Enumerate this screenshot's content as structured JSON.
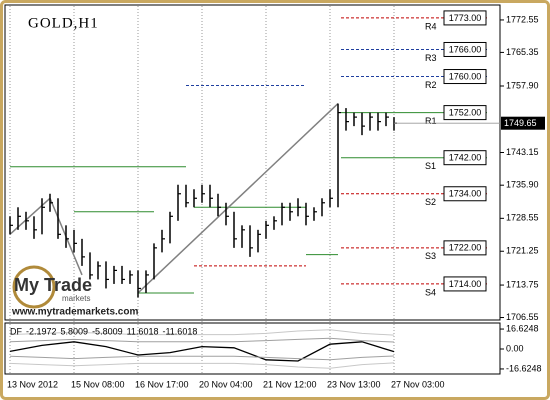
{
  "chart_data": {
    "type": "ohlc",
    "title": "GOLD,H1",
    "categories": [
      "13 Nov 2012",
      null,
      null,
      null,
      null,
      null,
      null,
      null,
      "15 Nov 08:00",
      null,
      null,
      null,
      null,
      null,
      null,
      null,
      "16 Nov 17:00",
      null,
      null,
      null,
      null,
      null,
      null,
      null,
      "20 Nov 04:00",
      null,
      null,
      null,
      null,
      null,
      null,
      null,
      "21 Nov 12:00",
      null,
      null,
      null,
      null,
      null,
      null,
      null,
      "23 Nov 13:00",
      null,
      null,
      null,
      null,
      null,
      null,
      null,
      "27 Nov 03:00"
    ],
    "high": [
      1729,
      1731,
      1730,
      1729,
      1733,
      1734,
      1733,
      1727,
      1726,
      1724,
      1721,
      1719,
      1719,
      1718,
      1718,
      1717,
      1717,
      1717,
      1723,
      1726,
      1730,
      1736,
      1736,
      1735,
      1736,
      1736,
      1734,
      1732,
      1730,
      1727,
      1727,
      1726,
      1728,
      1729,
      1732,
      1732,
      1733,
      1732,
      1731,
      1733,
      1735,
      1754,
      1753,
      1752,
      1752,
      1752,
      1752,
      1752,
      1751
    ],
    "low": [
      1725,
      1726,
      1726,
      1724,
      1725,
      1730,
      1724,
      1722,
      1721,
      1718,
      1715,
      1715,
      1713,
      1714,
      1714,
      1714,
      1711,
      1712,
      1715,
      1721,
      1723,
      1728,
      1731,
      1731,
      1732,
      1731,
      1729,
      1727,
      1722,
      1722,
      1720,
      1721,
      1724,
      1726,
      1727,
      1728,
      1729,
      1727,
      1728,
      1729,
      1731,
      1731,
      1748,
      1749,
      1747,
      1748,
      1748,
      1749,
      1748
    ],
    "close": [
      1727,
      1729,
      1728,
      1726,
      1731,
      1732,
      1725,
      1724,
      1723,
      1720,
      1716,
      1718,
      1715,
      1717,
      1715,
      1716,
      1713,
      1716,
      1722,
      1724,
      1729,
      1734,
      1732,
      1733,
      1734,
      1733,
      1731,
      1729,
      1724,
      1726,
      1722,
      1725,
      1727,
      1728,
      1731,
      1730,
      1731,
      1729,
      1730,
      1732,
      1733,
      1752,
      1750,
      1751,
      1749,
      1751,
      1750,
      1751,
      1749.65
    ],
    "bar_color": "#000000",
    "ylim": [
      1706,
      1775.2
    ],
    "yticks": [
      1772.55,
      1765.35,
      {
        "value": 1757.9,
        "label": "1757.90"
      },
      1743.15,
      {
        "value": 1735.9,
        "label": "1735.90"
      },
      1728.55,
      1721.25,
      1713.75,
      1706.55
    ],
    "grid": true,
    "last_price": 1749.65,
    "levels": {
      "names": [
        "R4",
        "R3",
        "R2",
        "R1",
        "S1",
        "S2",
        "S3",
        "S4"
      ],
      "values": [
        1773,
        1766,
        1760,
        1752,
        1742,
        1734,
        1722,
        1714
      ],
      "value_labels": [
        "1773.00",
        "1766.00",
        "1760.00",
        "1752.00",
        "1742.00",
        "1734.00",
        "1722.00",
        "1714.00"
      ],
      "colors": [
        "#c00000",
        "#1f3f9f",
        "#1f3f9f",
        "#2e8b2e",
        "#2e8b2e",
        "#c00000",
        "#c00000",
        "#c00000"
      ],
      "dashed": [
        true,
        true,
        true,
        false,
        false,
        true,
        true,
        true
      ],
      "start": 41
    },
    "past_levels": [
      {
        "value": 1740,
        "from": 0,
        "to": 22,
        "color": "#2e8b2e",
        "dashed": false
      },
      {
        "value": 1758,
        "from": 22,
        "to": 37,
        "color": "#1f3f9f",
        "dashed": true
      },
      {
        "value": 1730,
        "from": 8,
        "to": 18,
        "color": "#2e8b2e",
        "dashed": false
      },
      {
        "value": 1712,
        "from": 16,
        "to": 23,
        "color": "#2e8b2e",
        "dashed": false
      },
      {
        "value": 1718,
        "from": 23,
        "to": 37,
        "color": "#c00000",
        "dashed": true
      },
      {
        "value": 1720.5,
        "from": 37,
        "to": 41,
        "color": "#2e8b2e",
        "dashed": false
      },
      {
        "value": 1731,
        "from": 23,
        "to": 37,
        "color": "#2e8b2e",
        "dashed": false
      }
    ],
    "trendline_color": "#808080",
    "trendlines": [
      {
        "from": [
          0,
          1725
        ],
        "to": [
          5,
          1733
        ]
      },
      {
        "from": [
          5,
          1733
        ],
        "to": [
          9,
          1716
        ]
      },
      {
        "from": [
          16,
          1712
        ],
        "to": [
          41,
          1754
        ]
      }
    ],
    "watermark": {
      "brand": "My Trade",
      "sub": "markets",
      "url": "www.mytrademarkets.com"
    },
    "indicator": {
      "name": "DF",
      "readings": [
        -2.1972,
        5.8009,
        -5.8009,
        11.6018,
        -11.6018
      ],
      "x": [
        0,
        4,
        8,
        12,
        16,
        20,
        24,
        28,
        32,
        36,
        40,
        44,
        48
      ],
      "ylim": [
        -20,
        20
      ],
      "yticks": [
        16.6248,
        {
          "value": 0,
          "label": "0.00"
        },
        -16.6248
      ],
      "series": [
        {
          "color": "#000000",
          "values": [
            -2,
            3,
            6,
            2,
            -5,
            -3,
            2,
            1,
            -9,
            -10,
            4,
            6,
            -2.1972
          ]
        },
        {
          "color": "#a0a0a0",
          "values": [
            6,
            7,
            8,
            7,
            6,
            6,
            6,
            6,
            7,
            8,
            9,
            7,
            5.8009
          ]
        },
        {
          "color": "#a0a0a0",
          "values": [
            -6,
            -7,
            -8,
            -7,
            -6,
            -6,
            -6,
            -6,
            -7,
            -8,
            -9,
            -7,
            -5.8009
          ]
        },
        {
          "color": "#c8c8c8",
          "values": [
            12,
            13,
            14,
            13,
            12,
            12,
            12,
            12,
            13,
            15,
            16,
            13,
            11.6018
          ]
        },
        {
          "color": "#c8c8c8",
          "values": [
            -12,
            -13,
            -14,
            -13,
            -12,
            -12,
            -12,
            -12,
            -13,
            -15,
            -16,
            -13,
            -11.6018
          ]
        }
      ]
    }
  }
}
